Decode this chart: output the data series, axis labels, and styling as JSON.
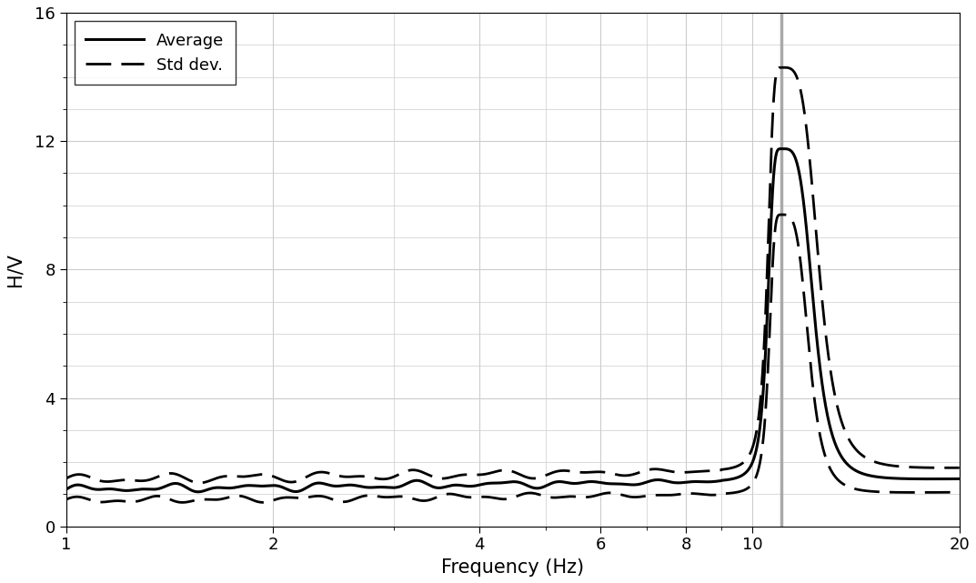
{
  "xlabel": "Frequency (Hz)",
  "ylabel": "H/V",
  "xlim": [
    1,
    20
  ],
  "ylim": [
    0,
    16
  ],
  "yticks": [
    0,
    4,
    8,
    12,
    16
  ],
  "xticks": [
    1,
    2,
    4,
    6,
    8,
    10,
    20
  ],
  "xtick_labels": [
    "1",
    "2",
    "4",
    "6",
    "8",
    "10",
    "20"
  ],
  "vline_x": 11.0,
  "vline_color": "#aaaaaa",
  "avg_color": "#000000",
  "std_color": "#000000",
  "bg_color": "#ffffff",
  "grid_color": "#cccccc",
  "peak_freq": 11.0,
  "avg_peak": 11.5,
  "std_peak_upper": 14.0,
  "std_peak_lower": 9.5
}
